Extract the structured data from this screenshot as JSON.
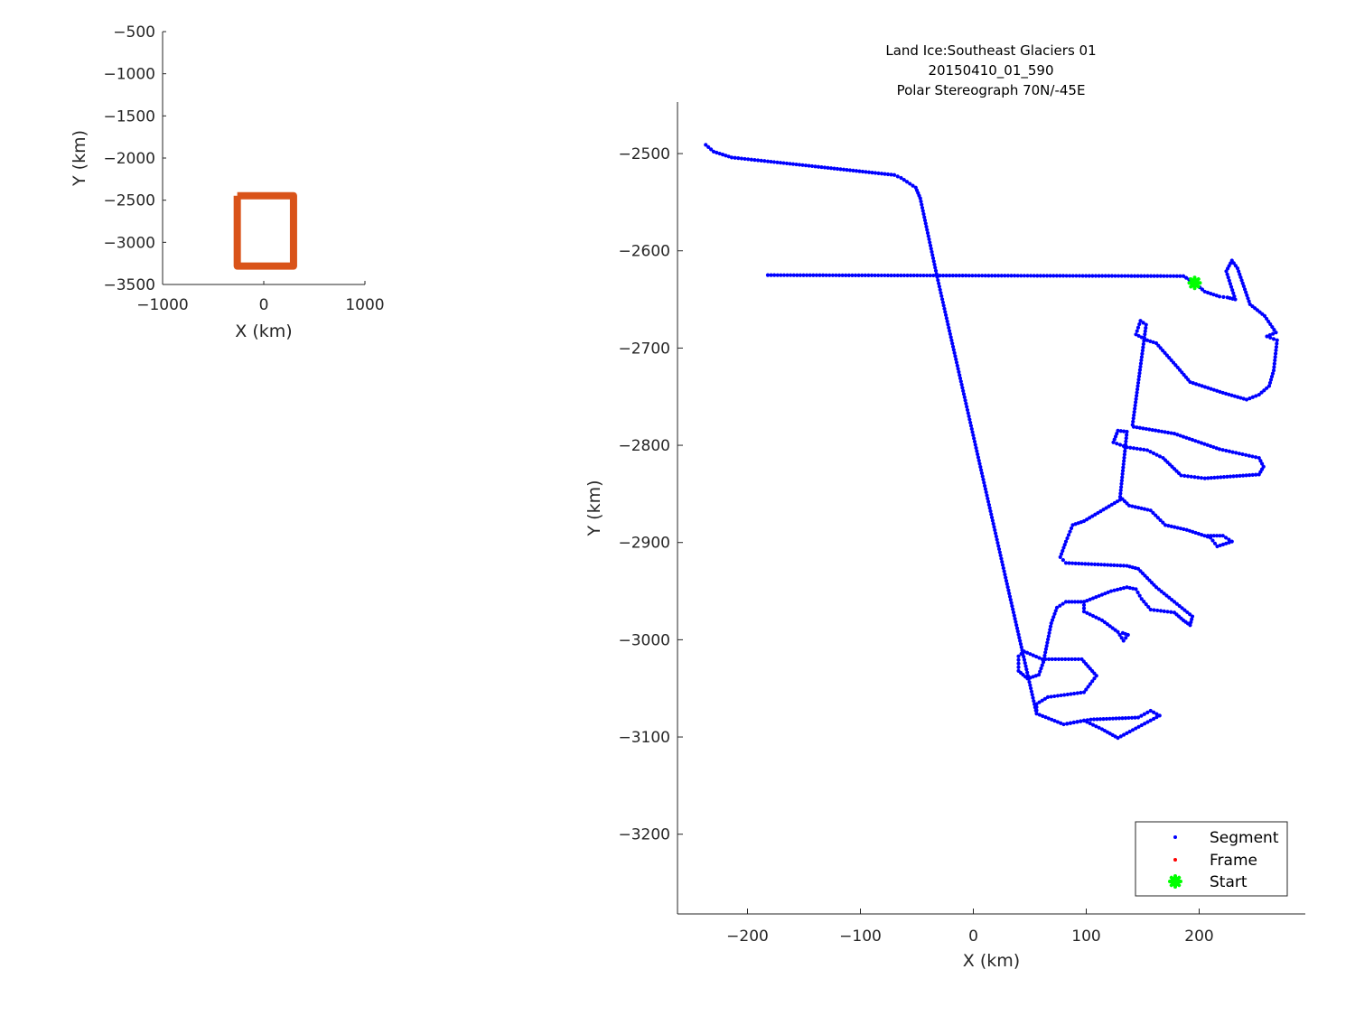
{
  "chart_data": [
    {
      "type": "line",
      "xlabel": "X (km)",
      "ylabel": "Y (km)",
      "xlim": [
        -1000,
        1000
      ],
      "ylim": [
        -3500,
        -500
      ],
      "xticks": [
        -1000,
        0,
        1000
      ],
      "yticks": [
        -500,
        -1000,
        -1500,
        -2000,
        -2500,
        -3000,
        -3500
      ],
      "color": "#D95319",
      "series": [
        {
          "x": [
            -262,
            294,
            294,
            -262,
            -262
          ],
          "y": [
            -2447,
            -2447,
            -3282,
            -3282,
            -2447
          ]
        }
      ]
    },
    {
      "type": "scatter",
      "title": [
        "Land Ice:Southeast Glaciers 01",
        "20150410_01_590",
        "Polar Stereograph 70N/-45E"
      ],
      "xlabel": "X (km)",
      "ylabel": "Y (km)",
      "xlim": [
        -262,
        294
      ],
      "ylim": [
        -3282,
        -2447
      ],
      "xticks": [
        -200,
        -100,
        0,
        100,
        200
      ],
      "yticks": [
        -2500,
        -2600,
        -2700,
        -2800,
        -2900,
        -3000,
        -3100,
        -3200
      ],
      "legend_position": "bottom-right",
      "legend": [
        {
          "name": "Segment",
          "color": "#0000FF",
          "marker": "dot"
        },
        {
          "name": "Frame",
          "color": "#FF0000",
          "marker": "dot"
        },
        {
          "name": "Start",
          "color": "#00FF00",
          "marker": "asterisk"
        }
      ],
      "segment_tracks": [
        [
          [
            -237,
            -2491
          ],
          [
            -230,
            -2498
          ],
          [
            -214,
            -2504
          ],
          [
            -182,
            -2508
          ],
          [
            -126,
            -2515
          ],
          [
            -70,
            -2522
          ],
          [
            -64,
            -2525
          ],
          [
            -51,
            -2535
          ],
          [
            -47,
            -2546
          ],
          [
            -32,
            -2627
          ],
          [
            56,
            -3076
          ]
        ],
        [
          [
            -182,
            -2625
          ],
          [
            186,
            -2626
          ],
          [
            196,
            -2633
          ]
        ],
        [
          [
            196,
            -2633
          ],
          [
            205,
            -2642
          ],
          [
            218,
            -2647
          ],
          [
            225,
            -2648
          ],
          [
            232,
            -2650
          ],
          [
            224,
            -2621
          ],
          [
            229,
            -2610
          ],
          [
            234,
            -2618
          ],
          [
            245,
            -2655
          ],
          [
            258,
            -2667
          ],
          [
            268,
            -2684
          ],
          [
            260,
            -2688
          ],
          [
            269,
            -2692
          ],
          [
            266,
            -2723
          ],
          [
            262,
            -2739
          ],
          [
            253,
            -2748
          ],
          [
            242,
            -2753
          ],
          [
            221,
            -2746
          ],
          [
            192,
            -2735
          ],
          [
            181,
            -2720
          ],
          [
            162,
            -2695
          ],
          [
            154,
            -2692
          ],
          [
            144,
            -2686
          ],
          [
            148,
            -2672
          ],
          [
            153,
            -2676
          ],
          [
            141,
            -2779
          ],
          [
            142,
            -2781
          ],
          [
            178,
            -2788
          ],
          [
            218,
            -2804
          ],
          [
            253,
            -2813
          ],
          [
            257,
            -2822
          ],
          [
            253,
            -2830
          ],
          [
            205,
            -2834
          ],
          [
            184,
            -2831
          ],
          [
            168,
            -2813
          ],
          [
            154,
            -2805
          ],
          [
            136,
            -2802
          ],
          [
            124,
            -2797
          ],
          [
            128,
            -2785
          ],
          [
            136,
            -2786
          ],
          [
            130,
            -2853
          ],
          [
            138,
            -2862
          ],
          [
            157,
            -2867
          ],
          [
            170,
            -2882
          ],
          [
            189,
            -2887
          ],
          [
            210,
            -2895
          ],
          [
            216,
            -2904
          ],
          [
            229,
            -2899
          ],
          [
            221,
            -2893
          ],
          [
            205,
            -2893
          ]
        ],
        [
          [
            130,
            -2856
          ],
          [
            98,
            -2878
          ],
          [
            88,
            -2882
          ],
          [
            82,
            -2899
          ],
          [
            77,
            -2915
          ],
          [
            82,
            -2921
          ],
          [
            136,
            -2924
          ],
          [
            146,
            -2927
          ],
          [
            162,
            -2946
          ],
          [
            178,
            -2961
          ],
          [
            194,
            -2976
          ],
          [
            192,
            -2985
          ],
          [
            186,
            -2980
          ],
          [
            178,
            -2972
          ],
          [
            157,
            -2969
          ],
          [
            149,
            -2958
          ],
          [
            144,
            -2948
          ],
          [
            136,
            -2946
          ],
          [
            122,
            -2950
          ],
          [
            98,
            -2961
          ],
          [
            82,
            -2961
          ],
          [
            74,
            -2967
          ],
          [
            69,
            -2983
          ],
          [
            62,
            -3023
          ],
          [
            58,
            -3036
          ],
          [
            48,
            -3040
          ],
          [
            40,
            -3032
          ],
          [
            40,
            -3017
          ],
          [
            45,
            -3012
          ],
          [
            61,
            -3020
          ],
          [
            96,
            -3020
          ],
          [
            109,
            -3037
          ],
          [
            98,
            -3054
          ],
          [
            66,
            -3059
          ],
          [
            56,
            -3066
          ],
          [
            56,
            -3076
          ],
          [
            80,
            -3087
          ],
          [
            104,
            -3082
          ],
          [
            146,
            -3080
          ],
          [
            157,
            -3073
          ],
          [
            165,
            -3078
          ],
          [
            157,
            -3083
          ],
          [
            128,
            -3101
          ],
          [
            114,
            -3092
          ],
          [
            98,
            -3083
          ],
          [
            80,
            -3087
          ]
        ],
        [
          [
            98,
            -2961
          ],
          [
            98,
            -2971
          ],
          [
            114,
            -2980
          ],
          [
            128,
            -2992
          ],
          [
            133,
            -3001
          ],
          [
            137,
            -2995
          ],
          [
            130,
            -2992
          ]
        ]
      ],
      "frame_points": [],
      "start_point": [
        196,
        -2633
      ]
    }
  ]
}
